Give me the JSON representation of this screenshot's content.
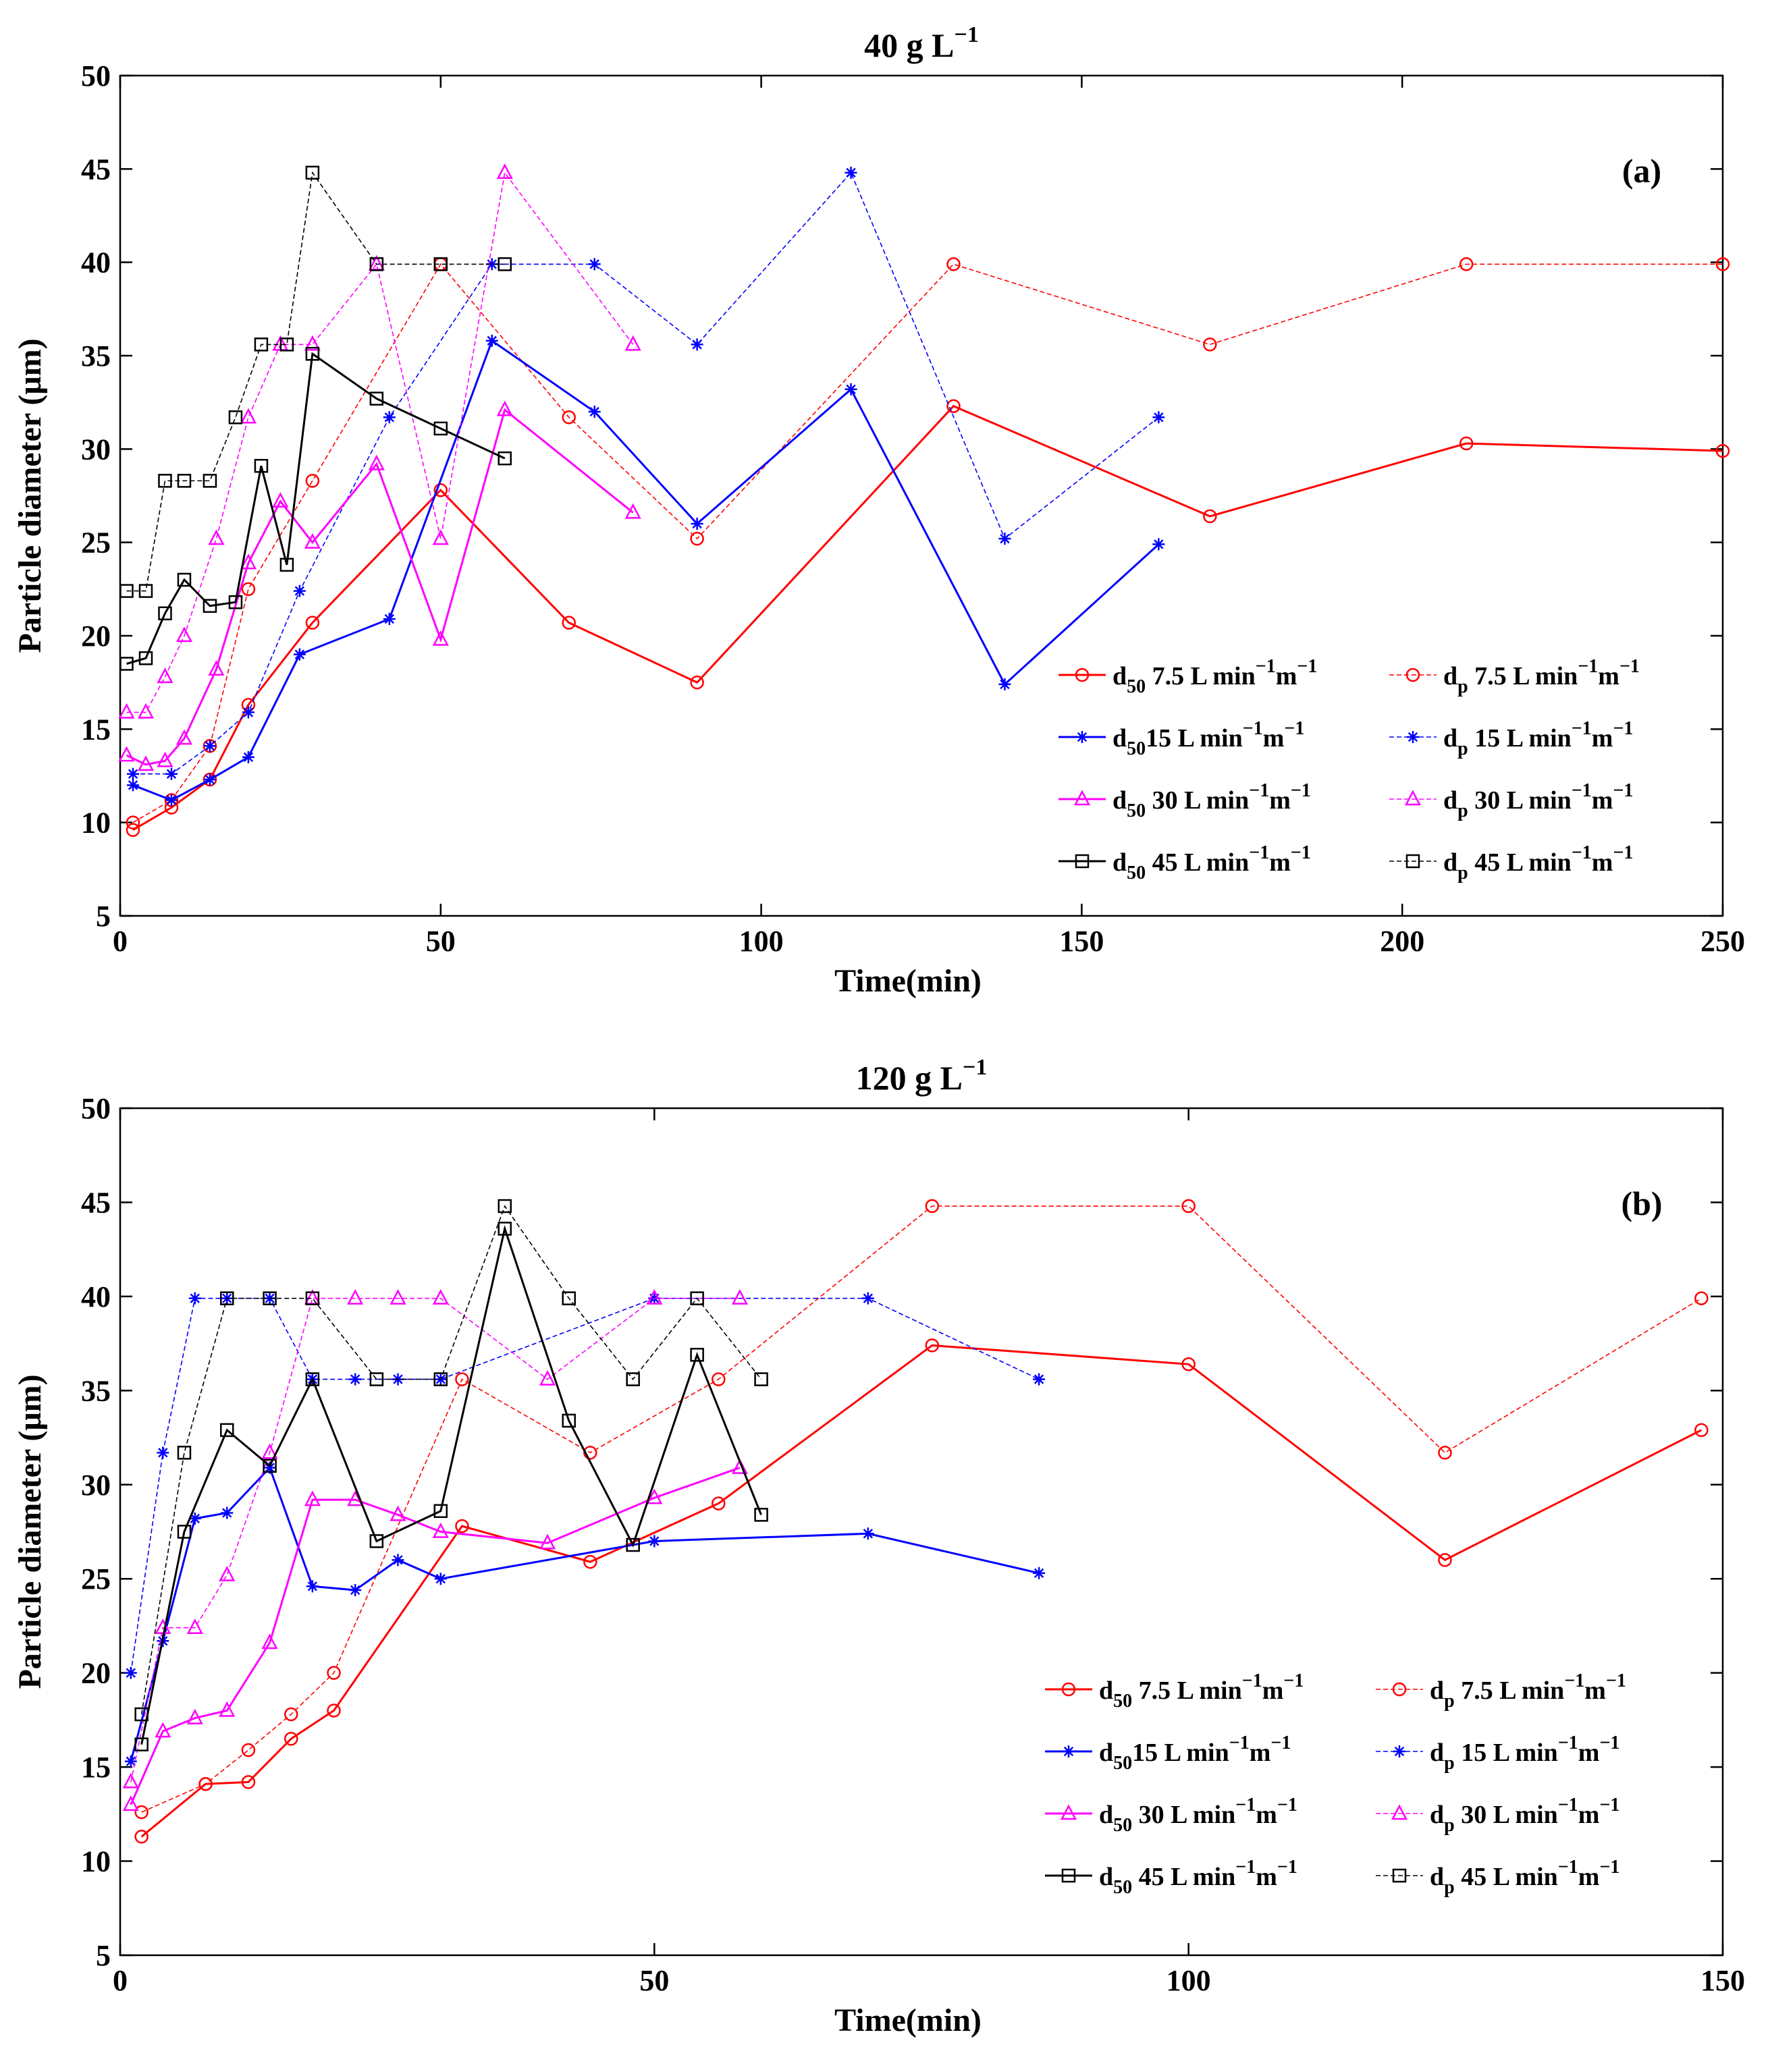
{
  "chart_data": [
    {
      "type": "line",
      "panel": "(a)",
      "title": "40 g L",
      "title_exp": "−1",
      "xlabel": "Time(min)",
      "ylabel": "Particle diameter (μm)",
      "xlim": [
        0,
        250
      ],
      "ylim": [
        5,
        50
      ],
      "xticks": [
        0,
        50,
        100,
        150,
        200,
        250
      ],
      "yticks": [
        5,
        10,
        15,
        20,
        25,
        30,
        35,
        40,
        45,
        50
      ],
      "legend_position": "bottom-right",
      "series": [
        {
          "name": "d50 7.5 L min-1m-1",
          "kind": "d50",
          "flow": "7.5",
          "color": "#ff0000",
          "marker": "circle",
          "dashed": false,
          "x": [
            2,
            8,
            14,
            20,
            30,
            50,
            70,
            90,
            130,
            170,
            210,
            250
          ],
          "y": [
            9.6,
            10.8,
            12.3,
            16.3,
            20.7,
            27.8,
            20.7,
            17.5,
            32.3,
            26.4,
            30.3,
            29.9
          ]
        },
        {
          "name": "dp 7.5 L min-1m-1",
          "kind": "dp",
          "flow": "7.5",
          "color": "#ff0000",
          "marker": "circle",
          "dashed": true,
          "x": [
            2,
            8,
            14,
            20,
            30,
            50,
            70,
            90,
            130,
            170,
            210,
            250
          ],
          "y": [
            10.0,
            11.2,
            14.1,
            22.5,
            28.3,
            39.9,
            31.7,
            25.2,
            39.9,
            35.6,
            39.9,
            39.9
          ]
        },
        {
          "name": "d50 15 L min-1m-1",
          "kind": "d50",
          "flow": "15",
          "color": "#0000ff",
          "marker": "star",
          "dashed": false,
          "x": [
            2,
            8,
            14,
            20,
            28,
            42,
            58,
            74,
            90,
            114,
            138,
            162
          ],
          "y": [
            12.0,
            11.2,
            12.3,
            13.5,
            19.0,
            20.9,
            35.8,
            32.0,
            26.0,
            33.2,
            17.4,
            24.9
          ]
        },
        {
          "name": "dp 15 L min-1m-1",
          "kind": "dp",
          "flow": "15",
          "color": "#0000ff",
          "marker": "star",
          "dashed": true,
          "x": [
            2,
            8,
            14,
            20,
            28,
            42,
            58,
            74,
            90,
            114,
            138,
            162
          ],
          "y": [
            12.6,
            12.6,
            14.1,
            15.9,
            22.4,
            31.7,
            39.9,
            39.9,
            35.6,
            44.8,
            25.2,
            31.7
          ]
        },
        {
          "name": "d50 30 L min-1m-1",
          "kind": "d50",
          "flow": "30",
          "color": "#ff00ff",
          "marker": "triangle",
          "dashed": false,
          "x": [
            1,
            4,
            7,
            10,
            15,
            20,
            25,
            30,
            40,
            50,
            60,
            80
          ],
          "y": [
            13.6,
            13.1,
            13.3,
            14.5,
            18.2,
            23.9,
            27.2,
            25.0,
            29.2,
            19.8,
            32.1,
            26.6
          ]
        },
        {
          "name": "dp 30 L min-1m-1",
          "kind": "dp",
          "flow": "30",
          "color": "#ff00ff",
          "marker": "triangle",
          "dashed": true,
          "x": [
            1,
            4,
            7,
            10,
            15,
            20,
            25,
            30,
            40,
            50,
            60,
            80
          ],
          "y": [
            15.9,
            15.9,
            17.8,
            20.0,
            25.2,
            31.7,
            35.6,
            35.6,
            39.9,
            25.2,
            44.8,
            35.6
          ]
        },
        {
          "name": "d50 45 L min-1m-1",
          "kind": "d50",
          "flow": "45",
          "color": "#000000",
          "marker": "square",
          "dashed": false,
          "x": [
            1,
            4,
            7,
            10,
            14,
            18,
            22,
            26,
            30,
            40,
            50,
            60
          ],
          "y": [
            18.5,
            18.8,
            21.2,
            23.0,
            21.6,
            21.8,
            29.1,
            23.8,
            35.1,
            32.7,
            31.1,
            29.5
          ]
        },
        {
          "name": "dp 45 L min-1m-1",
          "kind": "dp",
          "flow": "45",
          "color": "#000000",
          "marker": "square",
          "dashed": true,
          "x": [
            1,
            4,
            7,
            10,
            14,
            18,
            22,
            26,
            30,
            40,
            50,
            60
          ],
          "y": [
            22.4,
            22.4,
            28.3,
            28.3,
            28.3,
            31.7,
            35.6,
            35.6,
            44.8,
            39.9,
            39.9,
            39.9
          ]
        }
      ]
    },
    {
      "type": "line",
      "panel": "(b)",
      "title": "120 g L",
      "title_exp": "−1",
      "xlabel": "Time(min)",
      "ylabel": "Particle diameter (μm)",
      "xlim": [
        0,
        150
      ],
      "ylim": [
        5,
        50
      ],
      "xticks": [
        0,
        50,
        100,
        150
      ],
      "yticks": [
        5,
        10,
        15,
        20,
        25,
        30,
        35,
        40,
        45,
        50
      ],
      "legend_position": "bottom-right",
      "series": [
        {
          "name": "d50 7.5 L min-1m-1",
          "kind": "d50",
          "flow": "7.5",
          "color": "#ff0000",
          "marker": "circle",
          "dashed": false,
          "x": [
            2,
            8,
            12,
            16,
            20,
            32,
            44,
            56,
            76,
            100,
            124,
            148
          ],
          "y": [
            11.3,
            14.1,
            14.2,
            16.5,
            18.0,
            27.8,
            25.9,
            29.0,
            37.4,
            36.4,
            26.0,
            32.9
          ]
        },
        {
          "name": "dp 7.5 L min-1m-1",
          "kind": "dp",
          "flow": "7.5",
          "color": "#ff0000",
          "marker": "circle",
          "dashed": true,
          "x": [
            2,
            8,
            12,
            16,
            20,
            32,
            44,
            56,
            76,
            100,
            124,
            148
          ],
          "y": [
            12.6,
            14.1,
            15.9,
            17.8,
            20.0,
            35.6,
            31.7,
            35.6,
            44.8,
            44.8,
            31.7,
            39.9
          ]
        },
        {
          "name": "d50 15 L min-1m-1",
          "kind": "d50",
          "flow": "15",
          "color": "#0000ff",
          "marker": "star",
          "dashed": false,
          "x": [
            1,
            4,
            7,
            10,
            14,
            18,
            22,
            26,
            30,
            50,
            70,
            86
          ],
          "y": [
            15.3,
            21.7,
            28.2,
            28.5,
            30.9,
            24.6,
            24.4,
            26.0,
            25.0,
            27.0,
            27.4,
            25.3
          ]
        },
        {
          "name": "dp 15 L min-1m-1",
          "kind": "dp",
          "flow": "15",
          "color": "#0000ff",
          "marker": "star",
          "dashed": true,
          "x": [
            1,
            4,
            7,
            10,
            14,
            18,
            22,
            26,
            30,
            50,
            70,
            86
          ],
          "y": [
            20.0,
            31.7,
            39.9,
            39.9,
            39.9,
            35.6,
            35.6,
            35.6,
            35.6,
            39.9,
            39.9,
            35.6
          ]
        },
        {
          "name": "d50 30 L min-1m-1",
          "kind": "d50",
          "flow": "30",
          "color": "#ff00ff",
          "marker": "triangle",
          "dashed": false,
          "x": [
            1,
            4,
            7,
            10,
            14,
            18,
            22,
            26,
            30,
            40,
            50,
            58
          ],
          "y": [
            13.0,
            16.9,
            17.6,
            18.0,
            21.6,
            29.2,
            29.2,
            28.4,
            27.5,
            26.9,
            29.3,
            30.9
          ]
        },
        {
          "name": "dp 30 L min-1m-1",
          "kind": "dp",
          "flow": "30",
          "color": "#ff00ff",
          "marker": "triangle",
          "dashed": true,
          "x": [
            1,
            4,
            7,
            10,
            14,
            18,
            22,
            26,
            30,
            40,
            50,
            58
          ],
          "y": [
            14.2,
            22.4,
            22.4,
            25.2,
            31.7,
            39.9,
            39.9,
            39.9,
            39.9,
            35.6,
            39.9,
            39.9
          ]
        },
        {
          "name": "d50 45 L min-1m-1",
          "kind": "d50",
          "flow": "45",
          "color": "#000000",
          "marker": "square",
          "dashed": false,
          "x": [
            2,
            6,
            10,
            14,
            18,
            24,
            30,
            36,
            42,
            48,
            54,
            60
          ],
          "y": [
            16.2,
            27.5,
            32.9,
            31.0,
            35.6,
            27.0,
            28.6,
            43.6,
            33.4,
            26.8,
            36.9,
            28.4
          ]
        },
        {
          "name": "dp 45 L min-1m-1",
          "kind": "dp",
          "flow": "45",
          "color": "#000000",
          "marker": "square",
          "dashed": true,
          "x": [
            2,
            6,
            10,
            14,
            18,
            24,
            30,
            36,
            42,
            48,
            54,
            60
          ],
          "y": [
            17.8,
            31.7,
            39.9,
            39.9,
            39.9,
            35.6,
            35.6,
            44.8,
            39.9,
            35.6,
            39.9,
            35.6
          ]
        }
      ]
    }
  ]
}
